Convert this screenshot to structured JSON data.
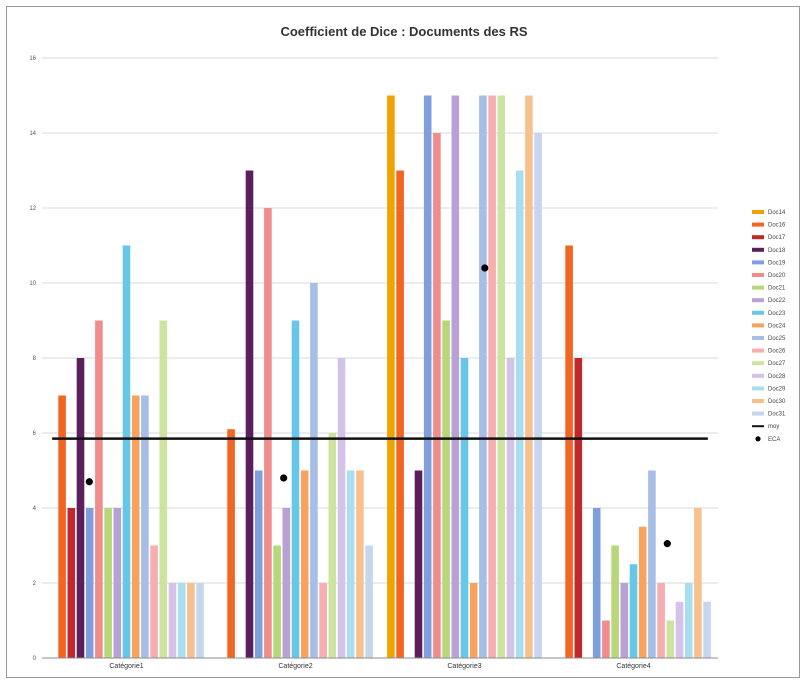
{
  "chart_data": {
    "type": "bar",
    "title": "Coefficient de Dice : Documents des RS",
    "xlabel": "",
    "ylabel": "",
    "ylim": [
      0,
      16
    ],
    "yticks": [
      "0",
      "2",
      "4",
      "6",
      "8",
      "10",
      "12",
      "14",
      "16"
    ],
    "grid": true,
    "legend_position": "right",
    "categories": [
      "Catégorie1",
      "Catégorie2",
      "Catégorie3",
      "Catégorie4"
    ],
    "series": [
      {
        "name": "Doc14",
        "color": "#f0a300",
        "values": [
          null,
          null,
          15.0,
          null
        ]
      },
      {
        "name": "Doc16",
        "color": "#f26522",
        "values": [
          7.0,
          6.1,
          13.0,
          11.0
        ]
      },
      {
        "name": "Doc17",
        "color": "#c1272d",
        "values": [
          4.0,
          null,
          null,
          8.0
        ]
      },
      {
        "name": "Doc18",
        "color": "#5b1f5e",
        "values": [
          8.0,
          13.0,
          5.0,
          null
        ]
      },
      {
        "name": "Doc19",
        "color": "#7f9fdc",
        "values": [
          4.0,
          5.0,
          15.0,
          4.0
        ]
      },
      {
        "name": "Doc20",
        "color": "#f08c8c",
        "values": [
          9.0,
          12.0,
          14.0,
          1.0
        ]
      },
      {
        "name": "Doc21",
        "color": "#b8d77a",
        "values": [
          4.0,
          3.0,
          9.0,
          3.0
        ]
      },
      {
        "name": "Doc22",
        "color": "#b9a1d6",
        "values": [
          4.0,
          4.0,
          15.0,
          2.0
        ]
      },
      {
        "name": "Doc23",
        "color": "#66c7e8",
        "values": [
          11.0,
          9.0,
          8.0,
          2.5
        ]
      },
      {
        "name": "Doc24",
        "color": "#f7a35c",
        "values": [
          7.0,
          5.0,
          2.0,
          3.5
        ]
      },
      {
        "name": "Doc25",
        "color": "#a7bfe6",
        "values": [
          7.0,
          10.0,
          15.0,
          5.0
        ]
      },
      {
        "name": "Doc26",
        "color": "#f6aeb0",
        "values": [
          3.0,
          2.0,
          15.0,
          2.0
        ]
      },
      {
        "name": "Doc27",
        "color": "#cfe3a0",
        "values": [
          9.0,
          6.0,
          15.0,
          1.0
        ]
      },
      {
        "name": "Doc28",
        "color": "#d4c2e8",
        "values": [
          2.0,
          8.0,
          8.0,
          1.5
        ]
      },
      {
        "name": "Doc29",
        "color": "#a9def0",
        "values": [
          2.0,
          5.0,
          13.0,
          2.0
        ]
      },
      {
        "name": "Doc30",
        "color": "#f9c08f",
        "values": [
          2.0,
          5.0,
          15.0,
          4.0
        ]
      },
      {
        "name": "Doc31",
        "color": "#c6d6ee",
        "values": [
          2.0,
          3.0,
          14.0,
          1.5
        ]
      }
    ],
    "line": {
      "name": "moy",
      "color": "#111111",
      "values": [
        5.85,
        5.85,
        5.85,
        5.85
      ]
    },
    "markers": {
      "name": "ECA",
      "color": "#000000",
      "values": [
        4.7,
        4.8,
        10.4,
        3.05
      ]
    }
  }
}
